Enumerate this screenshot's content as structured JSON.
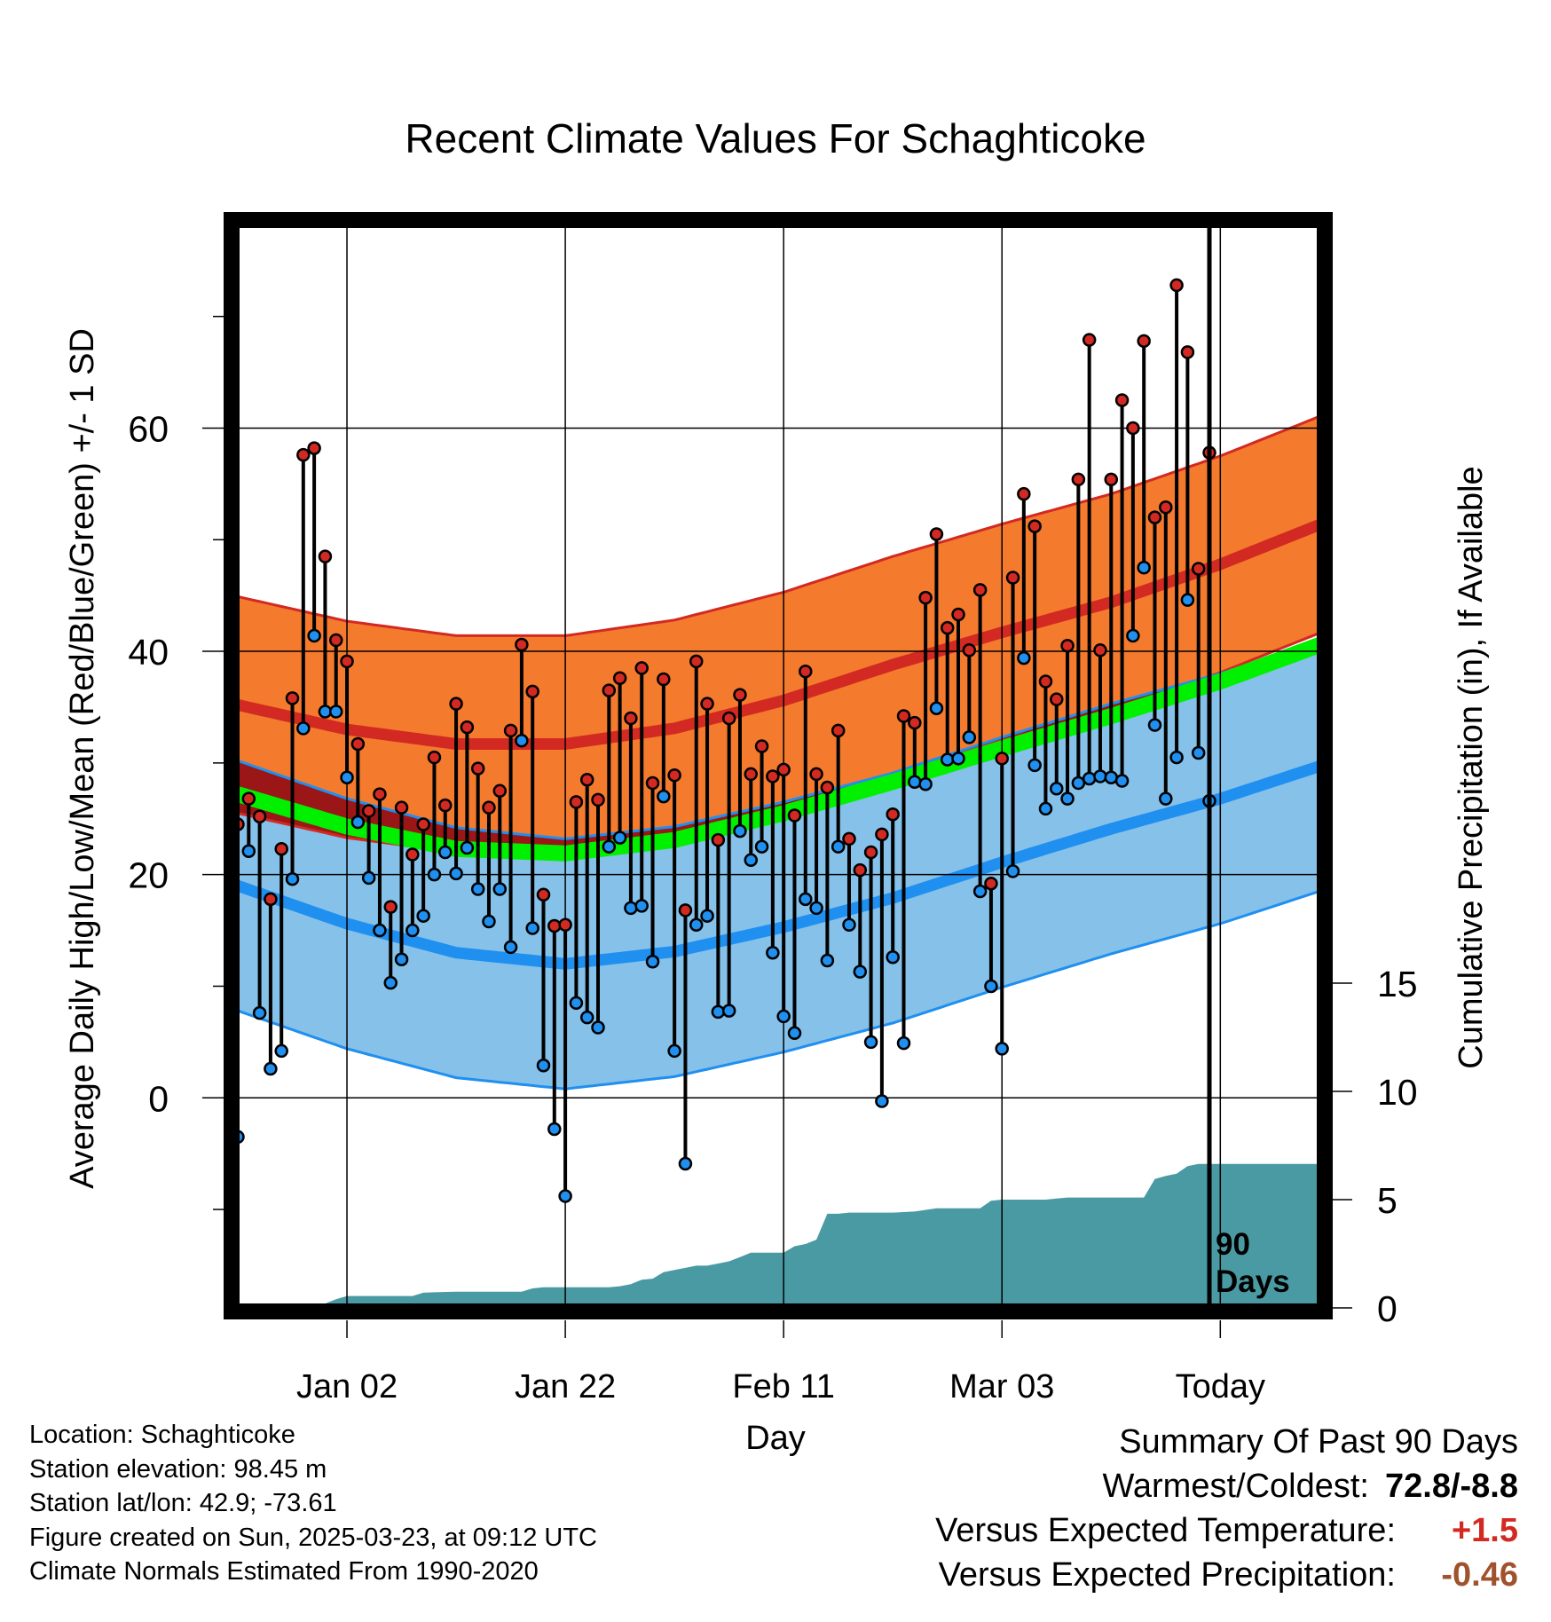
{
  "chart_data": {
    "type": "line",
    "title": "Recent Climate Values For Schaghticoke",
    "xlabel": "Day",
    "ylabel": "Average Daily High/Low/Mean (Red/Blue/Green) +/- 1 SD",
    "y2label": "Cumulative Precipitation (in), If Available",
    "xticks": [
      "Jan 02",
      "Jan 22",
      "Feb 11",
      "Mar 03",
      "Today"
    ],
    "ylim": [
      -18.5,
      78
    ],
    "y_ticks_major": [
      "0",
      "20",
      "40",
      "60"
    ],
    "y2_ticks": [
      "0",
      "5",
      "10",
      "15"
    ],
    "y2lim": [
      0,
      15
    ],
    "today_label": "90\nDays",
    "colors": {
      "high_band": "#f47a2e",
      "high_line": "#d22a22",
      "low_band": "#85c1e9",
      "low_line": "#1f8ff0",
      "mean_line": "#00f000",
      "mean_band": "#9b1616",
      "precip": "#4a9aa3",
      "obs_high": "#d22a22",
      "obs_low": "#1f8ff0"
    },
    "normals": {
      "x": [
        0,
        10,
        20,
        30,
        40,
        50,
        60,
        70,
        80,
        90,
        100
      ],
      "high_mean": [
        35.2,
        33.0,
        31.7,
        31.7,
        33.1,
        35.6,
        38.8,
        41.7,
        44.4,
        47.8,
        51.7
      ],
      "high_sd": 9.7,
      "low_mean": [
        19.0,
        15.6,
        13.0,
        12.0,
        13.1,
        15.3,
        17.9,
        21.1,
        24.1,
        26.8,
        30.0
      ],
      "low_sd": 11.2,
      "mean_mean": [
        27.2,
        24.3,
        22.3,
        21.9,
        23.1,
        25.5,
        28.3,
        31.3,
        34.2,
        37.3,
        40.9
      ]
    },
    "highs": [
      24.5,
      26.8,
      25.2,
      17.8,
      22.3,
      35.8,
      57.6,
      58.2,
      48.5,
      41.0,
      39.1,
      31.7,
      25.7,
      27.2,
      17.1,
      26.0,
      21.8,
      24.5,
      30.5,
      26.2,
      35.3,
      33.2,
      29.5,
      26.0,
      27.5,
      32.9,
      40.6,
      36.4,
      18.2,
      15.4,
      15.5,
      26.5,
      28.5,
      26.7,
      36.5,
      37.6,
      34.0,
      38.5,
      28.2,
      37.5,
      28.9,
      16.8,
      39.1,
      35.3,
      23.1,
      34.0,
      36.1,
      29.0,
      31.5,
      28.8,
      29.4,
      25.3,
      38.2,
      29.0,
      27.8,
      32.9,
      23.2,
      20.4,
      22.0,
      23.6,
      25.4,
      34.2,
      33.6,
      44.8,
      50.5,
      42.1,
      43.3,
      40.1,
      45.5,
      19.2,
      30.4,
      46.6,
      54.1,
      51.2,
      37.3,
      35.7,
      40.5,
      55.4,
      67.9,
      40.1,
      55.4,
      62.5,
      60.0,
      67.8,
      52.0,
      52.9,
      72.8,
      66.8,
      47.4,
      57.8
    ],
    "lows": [
      -3.5,
      22.1,
      7.6,
      2.6,
      4.2,
      19.6,
      33.1,
      41.4,
      34.6,
      34.6,
      28.7,
      24.7,
      19.7,
      15.0,
      10.3,
      12.4,
      15.0,
      16.3,
      20.0,
      22.0,
      20.1,
      22.4,
      18.7,
      15.8,
      18.7,
      13.5,
      32.0,
      15.2,
      2.9,
      -2.8,
      -8.8,
      8.5,
      7.2,
      6.3,
      22.5,
      23.3,
      17.0,
      17.2,
      12.2,
      27.0,
      4.2,
      -5.9,
      15.5,
      16.3,
      7.7,
      7.8,
      23.9,
      21.3,
      22.5,
      13.0,
      7.3,
      5.8,
      17.8,
      17.0,
      12.3,
      22.5,
      15.5,
      11.3,
      5.0,
      -0.3,
      12.6,
      4.9,
      28.3,
      28.1,
      34.9,
      30.3,
      30.4,
      32.3,
      18.5,
      10.0,
      4.4,
      20.3,
      39.4,
      29.8,
      25.9,
      27.7,
      26.8,
      28.2,
      28.6,
      28.8,
      28.7,
      28.4,
      41.4,
      47.5,
      33.4,
      26.8,
      30.5,
      44.6,
      30.9,
      26.6
    ],
    "precip": {
      "x": [
        7,
        8,
        9,
        10,
        16,
        17,
        18,
        20,
        26,
        27,
        28,
        30,
        34,
        35,
        36,
        37,
        38,
        39,
        40,
        41,
        42,
        43,
        44,
        45,
        46,
        47,
        48,
        49,
        50,
        51,
        52,
        53,
        54,
        55,
        56,
        57,
        58,
        60,
        62,
        64,
        66,
        67,
        68,
        69,
        70,
        71,
        72,
        73,
        74,
        75,
        76,
        79,
        82,
        83,
        84,
        85,
        86,
        87,
        88,
        89,
        90,
        100
      ],
      "values": [
        0.0,
        0.2,
        0.4,
        0.55,
        0.55,
        0.7,
        0.72,
        0.75,
        0.75,
        0.9,
        0.95,
        0.95,
        0.95,
        1.0,
        1.1,
        1.3,
        1.35,
        1.65,
        1.75,
        1.85,
        1.95,
        1.95,
        2.05,
        2.15,
        2.35,
        2.55,
        2.55,
        2.55,
        2.55,
        2.85,
        2.95,
        3.15,
        4.35,
        4.35,
        4.4,
        4.4,
        4.4,
        4.4,
        4.45,
        4.6,
        4.6,
        4.6,
        4.6,
        4.95,
        5.0,
        5.0,
        5.0,
        5.0,
        5.0,
        5.05,
        5.1,
        5.1,
        5.1,
        5.1,
        5.95,
        6.1,
        6.2,
        6.55,
        6.65,
        6.65,
        6.65,
        6.65
      ]
    }
  },
  "info": {
    "location": "Location: Schaghticoke",
    "elevation": "Station elevation: 98.45 m",
    "latlon": "Station lat/lon: 42.9; -73.61",
    "created": "Figure created on Sun, 2025-03-23, at 09:12 UTC",
    "normals": "Climate Normals Estimated From 1990-2020"
  },
  "summary": {
    "title": "Summary Of Past 90 Days",
    "warm_label": "Warmest/Coldest:",
    "warm_value": "72.8/-8.8",
    "temp_label": "Versus Expected Temperature:",
    "temp_value": "+1.5",
    "temp_color": "#d22a22",
    "precip_label": "Versus Expected Precipitation:",
    "precip_value": "-0.46",
    "precip_color": "#a0522d"
  }
}
